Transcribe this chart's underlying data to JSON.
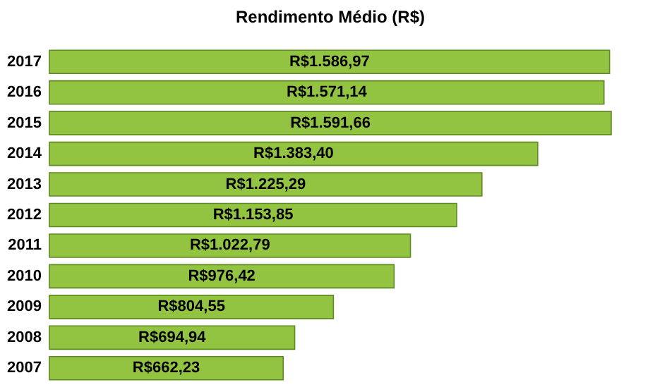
{
  "chart_data": {
    "type": "bar",
    "orientation": "horizontal",
    "title": "Rendimento Médio (R$)",
    "categories": [
      "2017",
      "2016",
      "2015",
      "2014",
      "2013",
      "2012",
      "2011",
      "2010",
      "2009",
      "2008",
      "2007"
    ],
    "values": [
      1586.97,
      1571.14,
      1591.66,
      1383.4,
      1225.29,
      1153.85,
      1022.79,
      976.42,
      804.55,
      694.94,
      662.23
    ],
    "value_labels": [
      "R$1.586,97",
      "R$1.571,14",
      "R$1.591,66",
      "R$1.383,40",
      "R$1.225,29",
      "R$1.153,85",
      "R$1.022,79",
      "R$976,42",
      "R$804,55",
      "R$694,94",
      "R$662,23"
    ],
    "color": "#92c441"
  }
}
